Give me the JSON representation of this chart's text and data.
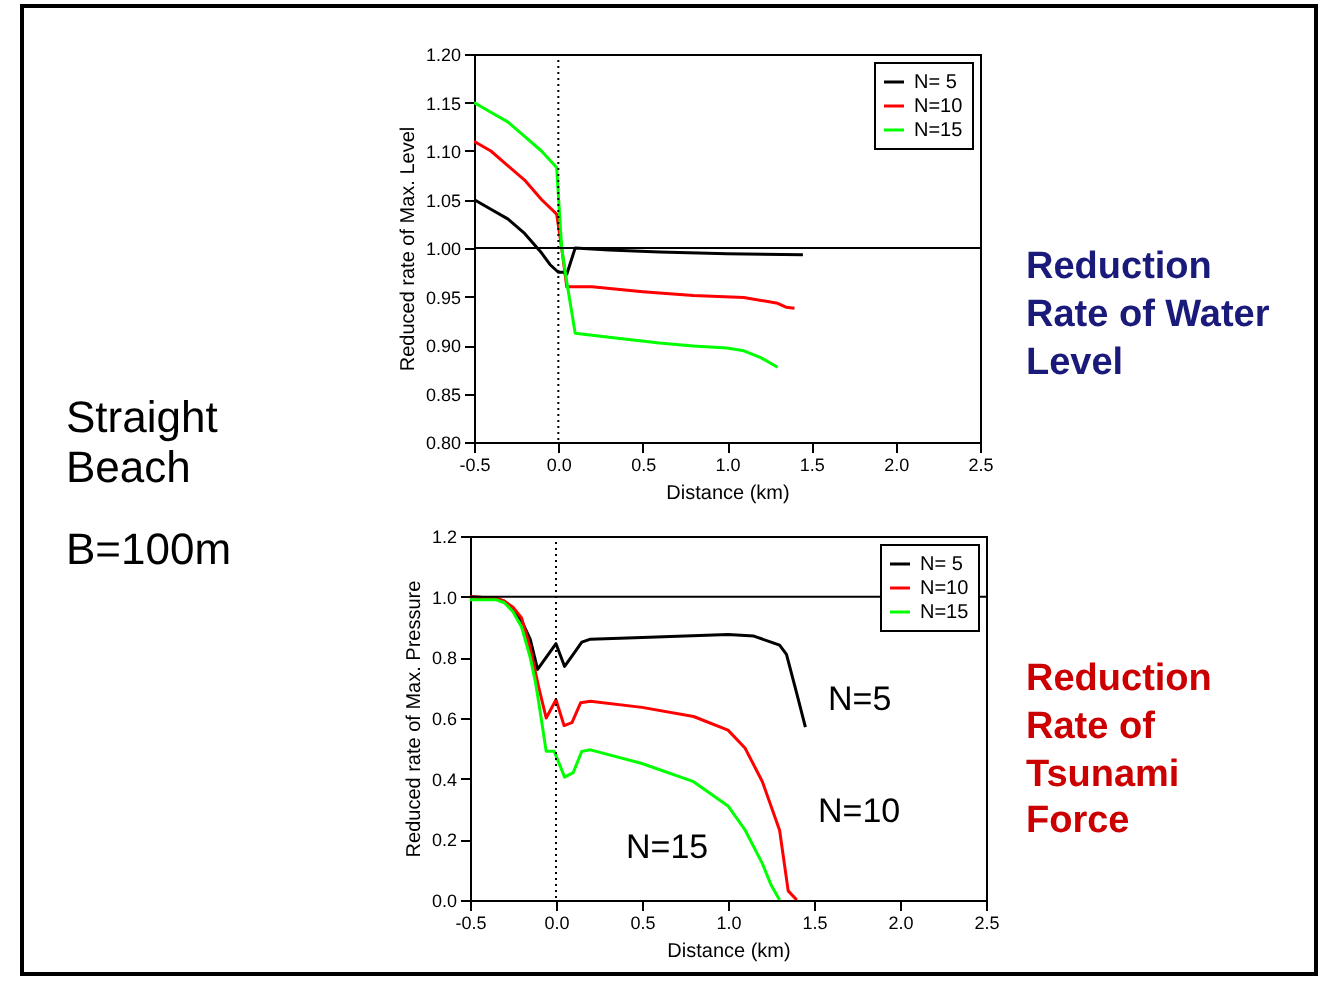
{
  "chart_data": [
    {
      "type": "line",
      "xlabel": "Distance (km)",
      "ylabel": "Reduced rate of Max. Level",
      "annotations": [
        "Straight Beach",
        "B=100m",
        "Reduction Rate of Water Level"
      ],
      "xlim": [
        -0.5,
        2.5
      ],
      "ylim": [
        0.8,
        1.2
      ],
      "xticks": [
        -0.5,
        {
          "value": 0,
          "label": "0.0"
        },
        0.5,
        {
          "value": 1,
          "label": "1.0"
        },
        1.5,
        {
          "value": 2,
          "label": "2.0"
        },
        2.5
      ],
      "yticks": [
        {
          "value": 0.8,
          "label": "0.80"
        },
        0.85,
        {
          "value": 0.9,
          "label": "0.90"
        },
        0.95,
        {
          "value": 1,
          "label": "1.00"
        },
        1.05,
        {
          "value": 1.1,
          "label": "1.10"
        },
        1.15,
        {
          "value": 1.2,
          "label": "1.20"
        }
      ],
      "legend": "top right",
      "ref_lines": [
        {
          "axis": "y",
          "value": 1,
          "color": "#000000",
          "line_style": "solid"
        },
        {
          "axis": "x",
          "value": 0,
          "color": "#000000",
          "line_style": "dotted"
        }
      ],
      "series": [
        {
          "name": "N= 5",
          "color": "#000000",
          "x": [
            -0.5,
            -0.4,
            -0.3,
            -0.2,
            -0.1,
            -0.05,
            0.0,
            0.03,
            0.05,
            0.1,
            0.3,
            0.6,
            1.0,
            1.45
          ],
          "values": [
            1.05,
            1.04,
            1.03,
            1.015,
            0.995,
            0.983,
            0.975,
            0.975,
            0.973,
            1.0,
            0.998,
            0.996,
            0.994,
            0.993
          ]
        },
        {
          "name": "N=10",
          "color": "#ff0000",
          "x": [
            -0.5,
            -0.4,
            -0.3,
            -0.2,
            -0.1,
            -0.01,
            0.02,
            0.05,
            0.2,
            0.5,
            0.8,
            1.1,
            1.3,
            1.35,
            1.4
          ],
          "values": [
            1.11,
            1.1,
            1.085,
            1.07,
            1.05,
            1.035,
            1.0,
            0.96,
            0.96,
            0.955,
            0.951,
            0.949,
            0.943,
            0.939,
            0.938
          ]
        },
        {
          "name": "N=15",
          "color": "#00ff00",
          "x": [
            -0.5,
            -0.4,
            -0.3,
            -0.2,
            -0.1,
            -0.01,
            0.02,
            0.05,
            0.1,
            0.3,
            0.6,
            0.8,
            1.0,
            1.1,
            1.2,
            1.3
          ],
          "values": [
            1.15,
            1.14,
            1.13,
            1.115,
            1.1,
            1.083,
            1.0,
            0.965,
            0.912,
            0.908,
            0.902,
            0.899,
            0.897,
            0.894,
            0.887,
            0.877
          ]
        }
      ]
    },
    {
      "type": "line",
      "xlabel": "Distance (km)",
      "ylabel": "Reduced rate of Max. Pressure",
      "annotations": [
        "Reduction Rate of Tsunami Force",
        "N=5",
        "N=10",
        "N=15"
      ],
      "xlim": [
        -0.5,
        2.5
      ],
      "ylim": [
        0,
        1.2
      ],
      "xticks": [
        -0.5,
        {
          "value": 0,
          "label": "0.0"
        },
        0.5,
        {
          "value": 1,
          "label": "1.0"
        },
        1.5,
        {
          "value": 2,
          "label": "2.0"
        },
        2.5
      ],
      "yticks": [
        {
          "value": 0,
          "label": "0.0"
        },
        0.2,
        0.4,
        0.6,
        0.8,
        {
          "value": 1,
          "label": "1.0"
        },
        1.2
      ],
      "legend": "top right",
      "ref_lines": [
        {
          "axis": "y",
          "value": 1,
          "color": "#000000",
          "line_style": "solid"
        },
        {
          "axis": "x",
          "value": 0,
          "color": "#000000",
          "line_style": "dotted"
        }
      ],
      "series": [
        {
          "name": "N= 5",
          "color": "#000000",
          "x": [
            -0.5,
            -0.35,
            -0.3,
            -0.25,
            -0.2,
            -0.15,
            -0.107,
            0.0,
            0.05,
            0.1,
            0.15,
            0.2,
            0.5,
            1.0,
            1.15,
            1.25,
            1.3,
            1.34,
            1.4,
            1.45
          ],
          "values": [
            1.0,
            0.995,
            0.985,
            0.96,
            0.92,
            0.86,
            0.76,
            0.845,
            0.77,
            0.81,
            0.85,
            0.86,
            0.865,
            0.875,
            0.87,
            0.85,
            0.84,
            0.81,
            0.68,
            0.57
          ]
        },
        {
          "name": "N=10",
          "color": "#ff0000",
          "x": [
            -0.5,
            -0.35,
            -0.3,
            -0.25,
            -0.2,
            -0.15,
            -0.1,
            -0.057,
            0.0,
            0.047,
            0.093,
            0.143,
            0.2,
            0.5,
            0.8,
            1.0,
            1.1,
            1.2,
            1.3,
            1.35,
            1.4
          ],
          "values": [
            1.0,
            0.995,
            0.985,
            0.965,
            0.93,
            0.83,
            0.7,
            0.6,
            0.66,
            0.575,
            0.585,
            0.65,
            0.655,
            0.635,
            0.605,
            0.56,
            0.5,
            0.39,
            0.23,
            0.03,
            0.0
          ]
        },
        {
          "name": "N=15",
          "color": "#00ff00",
          "x": [
            -0.5,
            -0.35,
            -0.3,
            -0.25,
            -0.2,
            -0.15,
            -0.12,
            -0.1,
            -0.057,
            -0.01,
            0.05,
            0.1,
            0.15,
            0.2,
            0.5,
            0.8,
            1.0,
            1.1,
            1.2,
            1.25,
            1.3
          ],
          "values": [
            0.99,
            0.99,
            0.98,
            0.95,
            0.9,
            0.8,
            0.72,
            0.65,
            0.49,
            0.49,
            0.405,
            0.42,
            0.49,
            0.495,
            0.45,
            0.39,
            0.31,
            0.23,
            0.12,
            0.05,
            0.0
          ]
        }
      ]
    }
  ]
}
